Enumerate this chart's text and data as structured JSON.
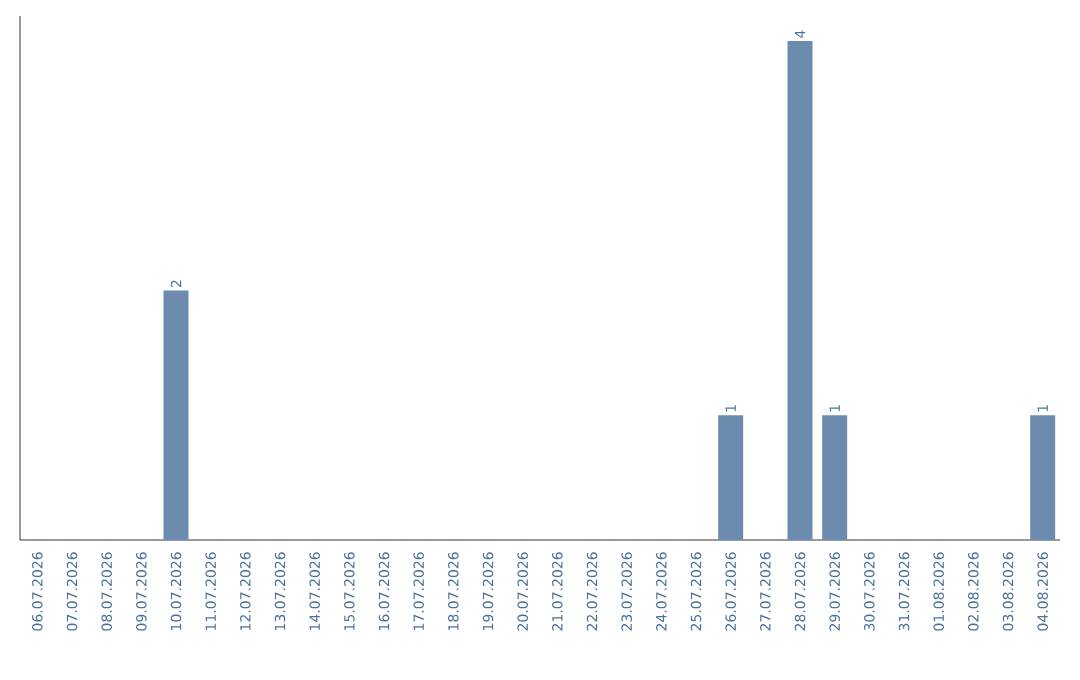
{
  "chart_data": {
    "type": "bar",
    "categories": [
      "06.07.2026",
      "07.07.2026",
      "08.07.2026",
      "09.07.2026",
      "10.07.2026",
      "11.07.2026",
      "12.07.2026",
      "13.07.2026",
      "14.07.2026",
      "15.07.2026",
      "16.07.2026",
      "17.07.2026",
      "18.07.2026",
      "19.07.2026",
      "20.07.2026",
      "21.07.2026",
      "22.07.2026",
      "23.07.2026",
      "24.07.2026",
      "25.07.2026",
      "26.07.2026",
      "27.07.2026",
      "28.07.2026",
      "29.07.2026",
      "30.07.2026",
      "31.07.2026",
      "01.08.2026",
      "02.08.2026",
      "03.08.2026",
      "04.08.2026"
    ],
    "values": [
      0,
      0,
      0,
      0,
      2,
      0,
      0,
      0,
      0,
      0,
      0,
      0,
      0,
      0,
      0,
      0,
      0,
      0,
      0,
      0,
      1,
      0,
      4,
      1,
      0,
      0,
      0,
      0,
      0,
      1
    ],
    "value_labels": [
      null,
      null,
      null,
      null,
      "2",
      null,
      null,
      null,
      null,
      null,
      null,
      null,
      null,
      null,
      null,
      null,
      null,
      null,
      null,
      null,
      "1",
      null,
      "4",
      "1",
      null,
      null,
      null,
      null,
      null,
      "1"
    ],
    "color": "#6b8cae",
    "tick_labels": "x",
    "grid": false
  }
}
